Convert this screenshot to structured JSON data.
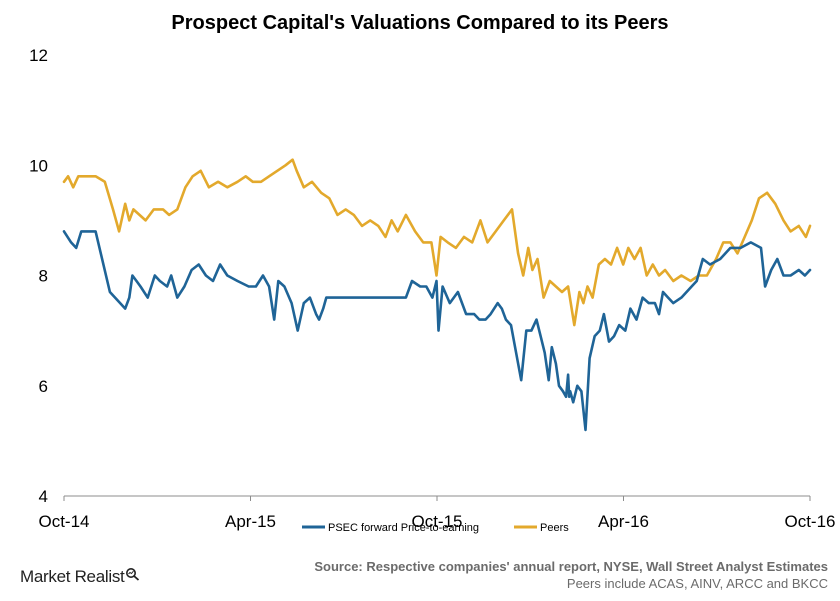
{
  "chart_data": {
    "type": "line",
    "title": "Prospect Capital's Valuations Compared to its Peers",
    "xlabel": "",
    "ylabel": "",
    "x_ticks": [
      "Oct-14",
      "Apr-15",
      "Oct-15",
      "Apr-16",
      "Oct-16"
    ],
    "x_range": [
      "2014-10-01",
      "2016-10-01"
    ],
    "y_ticks": [
      4,
      6,
      8,
      10,
      12
    ],
    "ylim": [
      4,
      12
    ],
    "grid": false,
    "legend_position": "bottom",
    "series": [
      {
        "name": "PSEC forward Price-to-earning",
        "color": "#1f6497",
        "x": [
          "2014-10-01",
          "2014-10-08",
          "2014-10-13",
          "2014-10-18",
          "2014-10-24",
          "2014-11-01",
          "2014-11-15",
          "2014-11-30",
          "2014-12-04",
          "2014-12-07",
          "2014-12-11",
          "2014-12-15",
          "2014-12-22",
          "2014-12-29",
          "2015-01-03",
          "2015-01-10",
          "2015-01-14",
          "2015-01-20",
          "2015-01-27",
          "2015-02-03",
          "2015-02-10",
          "2015-02-17",
          "2015-02-24",
          "2015-03-03",
          "2015-03-10",
          "2015-03-20",
          "2015-03-31",
          "2015-04-07",
          "2015-04-14",
          "2015-04-20",
          "2015-04-25",
          "2015-04-29",
          "2015-05-05",
          "2015-05-12",
          "2015-05-18",
          "2015-05-24",
          "2015-05-30",
          "2015-06-05",
          "2015-06-08",
          "2015-06-12",
          "2015-06-15",
          "2015-06-20",
          "2015-07-01",
          "2015-07-10",
          "2015-07-20",
          "2015-08-01",
          "2015-08-10",
          "2015-08-20",
          "2015-09-01",
          "2015-09-07",
          "2015-09-15",
          "2015-09-21",
          "2015-09-27",
          "2015-10-01",
          "2015-10-03",
          "2015-10-07",
          "2015-10-14",
          "2015-10-22",
          "2015-10-30",
          "2015-11-07",
          "2015-11-12",
          "2015-11-18",
          "2015-11-23",
          "2015-11-30",
          "2015-12-04",
          "2015-12-08",
          "2015-12-13",
          "2015-12-18",
          "2015-12-23",
          "2015-12-28",
          "2016-01-02",
          "2016-01-07",
          "2016-01-11",
          "2016-01-15",
          "2016-01-19",
          "2016-01-22",
          "2016-01-26",
          "2016-01-29",
          "2016-02-02",
          "2016-02-05",
          "2016-02-07",
          "2016-02-08",
          "2016-02-09",
          "2016-02-12",
          "2016-02-16",
          "2016-02-20",
          "2016-02-24",
          "2016-02-28",
          "2016-03-04",
          "2016-03-09",
          "2016-03-13",
          "2016-03-18",
          "2016-03-23",
          "2016-03-28",
          "2016-04-03",
          "2016-04-08",
          "2016-04-14",
          "2016-04-20",
          "2016-04-26",
          "2016-05-02",
          "2016-05-06",
          "2016-05-10",
          "2016-05-15",
          "2016-05-20",
          "2016-05-28",
          "2016-06-07",
          "2016-06-12",
          "2016-06-18",
          "2016-06-25",
          "2016-07-05",
          "2016-07-15",
          "2016-07-25",
          "2016-08-04",
          "2016-08-14",
          "2016-08-18",
          "2016-08-24",
          "2016-08-30",
          "2016-09-05",
          "2016-09-12",
          "2016-09-20",
          "2016-09-26",
          "2016-10-01"
        ],
        "values": [
          8.8,
          8.6,
          8.5,
          8.8,
          8.8,
          8.8,
          7.7,
          7.4,
          7.6,
          8.0,
          7.9,
          7.8,
          7.6,
          8.0,
          7.9,
          7.8,
          8.0,
          7.6,
          7.8,
          8.1,
          8.2,
          8.0,
          7.9,
          8.2,
          8.0,
          7.9,
          7.8,
          7.8,
          8.0,
          7.8,
          7.2,
          7.9,
          7.8,
          7.5,
          7.0,
          7.5,
          7.6,
          7.3,
          7.2,
          7.4,
          7.6,
          7.6,
          7.6,
          7.6,
          7.6,
          7.6,
          7.6,
          7.6,
          7.6,
          7.9,
          7.8,
          7.8,
          7.6,
          7.9,
          7.0,
          7.8,
          7.5,
          7.7,
          7.3,
          7.3,
          7.2,
          7.2,
          7.3,
          7.5,
          7.4,
          7.2,
          7.1,
          6.6,
          6.1,
          7.0,
          7.0,
          7.2,
          6.9,
          6.6,
          6.1,
          6.7,
          6.4,
          6.0,
          5.9,
          5.8,
          6.2,
          5.8,
          5.9,
          5.7,
          6.0,
          5.9,
          5.2,
          6.5,
          6.9,
          7.0,
          7.3,
          6.8,
          6.9,
          7.1,
          7.0,
          7.4,
          7.2,
          7.6,
          7.5,
          7.5,
          7.3,
          7.7,
          7.6,
          7.5,
          7.6,
          7.8,
          7.9,
          8.3,
          8.2,
          8.3,
          8.5,
          8.5,
          8.6,
          8.5,
          7.8,
          8.1,
          8.3,
          8.0,
          8.0,
          8.1,
          8.0,
          8.1
        ]
      },
      {
        "name": "Peers",
        "color": "#e3a92c",
        "x": [
          "2014-10-01",
          "2014-10-05",
          "2014-10-10",
          "2014-10-15",
          "2014-10-20",
          "2014-11-01",
          "2014-11-10",
          "2014-11-18",
          "2014-11-24",
          "2014-11-30",
          "2014-12-04",
          "2014-12-08",
          "2014-12-14",
          "2014-12-20",
          "2014-12-28",
          "2015-01-06",
          "2015-01-12",
          "2015-01-20",
          "2015-01-28",
          "2015-02-04",
          "2015-02-12",
          "2015-02-20",
          "2015-03-01",
          "2015-03-10",
          "2015-03-20",
          "2015-03-28",
          "2015-04-04",
          "2015-04-12",
          "2015-04-20",
          "2015-04-28",
          "2015-05-06",
          "2015-05-13",
          "2015-05-17",
          "2015-05-24",
          "2015-06-01",
          "2015-06-10",
          "2015-06-18",
          "2015-06-26",
          "2015-07-04",
          "2015-07-12",
          "2015-07-20",
          "2015-07-28",
          "2015-08-05",
          "2015-08-12",
          "2015-08-18",
          "2015-08-24",
          "2015-09-01",
          "2015-09-10",
          "2015-09-18",
          "2015-09-26",
          "2015-10-01",
          "2015-10-05",
          "2015-10-12",
          "2015-10-20",
          "2015-10-28",
          "2015-11-05",
          "2015-11-13",
          "2015-11-20",
          "2015-11-28",
          "2015-12-06",
          "2015-12-14",
          "2015-12-20",
          "2015-12-25",
          "2015-12-30",
          "2016-01-03",
          "2016-01-08",
          "2016-01-14",
          "2016-01-20",
          "2016-01-26",
          "2016-02-01",
          "2016-02-07",
          "2016-02-13",
          "2016-02-18",
          "2016-02-22",
          "2016-02-26",
          "2016-03-02",
          "2016-03-08",
          "2016-03-14",
          "2016-03-20",
          "2016-03-26",
          "2016-04-01",
          "2016-04-06",
          "2016-04-12",
          "2016-04-18",
          "2016-04-24",
          "2016-04-30",
          "2016-05-06",
          "2016-05-12",
          "2016-05-20",
          "2016-05-28",
          "2016-06-06",
          "2016-06-14",
          "2016-06-22",
          "2016-07-01",
          "2016-07-08",
          "2016-07-15",
          "2016-07-22",
          "2016-07-29",
          "2016-08-05",
          "2016-08-12",
          "2016-08-20",
          "2016-08-28",
          "2016-09-05",
          "2016-09-12",
          "2016-09-20",
          "2016-09-27",
          "2016-10-01"
        ],
        "values": [
          9.7,
          9.8,
          9.6,
          9.8,
          9.8,
          9.8,
          9.7,
          9.2,
          8.8,
          9.3,
          9.0,
          9.2,
          9.1,
          9.0,
          9.2,
          9.2,
          9.1,
          9.2,
          9.6,
          9.8,
          9.9,
          9.6,
          9.7,
          9.6,
          9.7,
          9.8,
          9.7,
          9.7,
          9.8,
          9.9,
          10.0,
          10.1,
          9.9,
          9.6,
          9.7,
          9.5,
          9.4,
          9.1,
          9.2,
          9.1,
          8.9,
          9.0,
          8.9,
          8.7,
          9.0,
          8.8,
          9.1,
          8.8,
          8.6,
          8.6,
          8.0,
          8.7,
          8.6,
          8.5,
          8.7,
          8.6,
          9.0,
          8.6,
          8.8,
          9.0,
          9.2,
          8.4,
          8.0,
          8.5,
          8.1,
          8.3,
          7.6,
          7.9,
          7.8,
          7.7,
          7.8,
          7.1,
          7.7,
          7.5,
          7.8,
          7.6,
          8.2,
          8.3,
          8.2,
          8.5,
          8.2,
          8.5,
          8.3,
          8.5,
          8.0,
          8.2,
          8.0,
          8.1,
          7.9,
          8.0,
          7.9,
          8.0,
          8.0,
          8.3,
          8.6,
          8.6,
          8.4,
          8.7,
          9.0,
          9.4,
          9.5,
          9.3,
          9.0,
          8.8,
          8.9,
          8.7,
          8.9
        ]
      }
    ]
  },
  "footer": {
    "brand": "Market Realist",
    "brand_icon": "magnifier-icon",
    "source": "Source: Respective companies' annual report, NYSE, Wall Street Analyst Estimates",
    "note": "Peers include ACAS, AINV,  ARCC and BKCC"
  }
}
